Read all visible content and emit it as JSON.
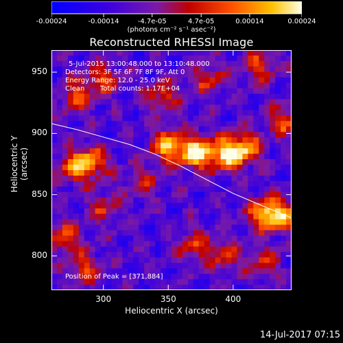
{
  "colorbar": {
    "ticks": [
      "-0.00024",
      "-0.00014",
      "-4.7e-05",
      "4.7e-05",
      "0.00014",
      "0.00024"
    ],
    "tick_values": [
      -0.00024,
      -0.00014,
      -4.7e-05,
      4.7e-05,
      0.00014,
      0.00024
    ],
    "range": [
      -0.00024,
      0.00024
    ],
    "label": "(photons cm⁻² s⁻¹ asec⁻²)"
  },
  "chart_data": {
    "type": "heatmap",
    "title": "Reconstructed RHESSI Image",
    "xlabel": "Heliocentric X (arcsec)",
    "ylabel": "Heliocentric Y (arcsec)",
    "xlim": [
      260,
      445
    ],
    "ylim": [
      772,
      968
    ],
    "x_ticks": [
      300,
      350,
      400
    ],
    "y_ticks": [
      800,
      850,
      900,
      950
    ],
    "limb_curve": {
      "x": [
        260,
        280,
        300,
        320,
        340,
        360,
        380,
        400,
        420,
        445
      ],
      "y": [
        908,
        903,
        897,
        891,
        883,
        873,
        862,
        851,
        842,
        831
      ]
    },
    "sources": [
      {
        "x": 372,
        "y": 884,
        "peak": 1.0
      },
      {
        "x": 350,
        "y": 890,
        "peak": 0.8
      },
      {
        "x": 395,
        "y": 883,
        "peak": 0.85
      },
      {
        "x": 410,
        "y": 888,
        "peak": 0.7
      },
      {
        "x": 290,
        "y": 876,
        "peak": 0.75
      },
      {
        "x": 275,
        "y": 872,
        "peak": 0.5
      },
      {
        "x": 425,
        "y": 835,
        "peak": 0.85
      },
      {
        "x": 440,
        "y": 832,
        "peak": 0.6
      },
      {
        "x": 280,
        "y": 930,
        "peak": 0.55
      },
      {
        "x": 300,
        "y": 945,
        "peak": 0.5
      },
      {
        "x": 345,
        "y": 930,
        "peak": 0.5
      },
      {
        "x": 380,
        "y": 945,
        "peak": 0.45
      },
      {
        "x": 420,
        "y": 955,
        "peak": 0.5
      },
      {
        "x": 300,
        "y": 840,
        "peak": 0.4
      },
      {
        "x": 270,
        "y": 815,
        "peak": 0.55
      },
      {
        "x": 285,
        "y": 790,
        "peak": 0.5
      },
      {
        "x": 370,
        "y": 808,
        "peak": 0.5
      },
      {
        "x": 395,
        "y": 800,
        "peak": 0.45
      },
      {
        "x": 425,
        "y": 795,
        "peak": 0.4
      },
      {
        "x": 330,
        "y": 860,
        "peak": 0.35
      },
      {
        "x": 440,
        "y": 910,
        "peak": 0.55
      }
    ]
  },
  "annotations": {
    "time_range": "5-Jul-2015 13:00:48.000 to 13:10:48.000",
    "detectors": "Detectors: 3F 5F 6F 7F 8F 9F, Att 0",
    "energy": "Energy Range: 12.0 - 25.0 keV",
    "method": "Clean",
    "counts": "Total counts: 1.17E+04",
    "peak": "Position of Peak = [371,884]"
  },
  "datestamp": "14-Jul-2017 07:15"
}
